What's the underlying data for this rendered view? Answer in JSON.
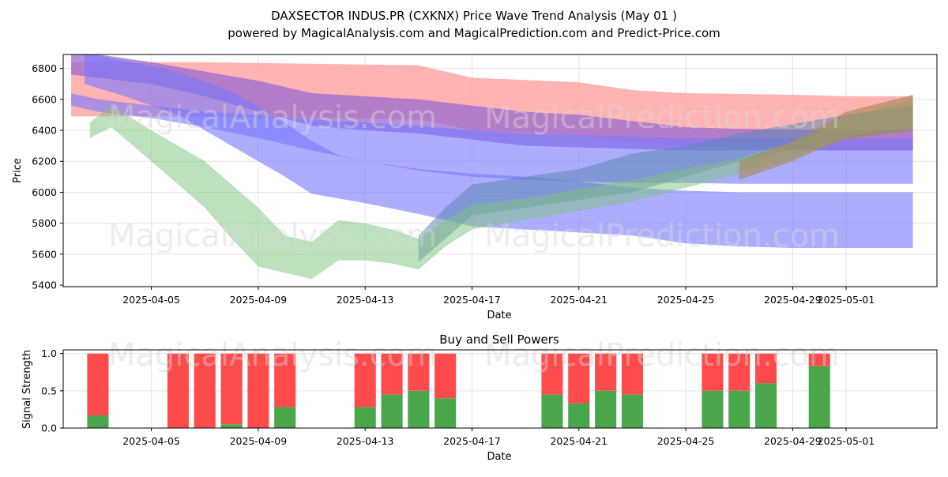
{
  "title_line1": "DAXSECTOR INDUS.PR (CXKNX) Price Wave Trend Analysis (May 01 )",
  "title_line2": "powered by MagicalAnalysis.com and MagicalPrediction.com and Predict-Price.com",
  "watermarks": [
    "MagicalAnalysis.com",
    "MagicalPrediction.com"
  ],
  "chart_data": [
    {
      "type": "area",
      "title": "DAXSECTOR INDUS.PR (CXKNX) Price Wave Trend Analysis (May 01 )",
      "xlabel": "Date",
      "ylabel": "Price",
      "x_tick_labels": [
        "2025-04-05",
        "2025-04-09",
        "2025-04-13",
        "2025-04-17",
        "2025-04-21",
        "2025-04-25",
        "2025-04-29",
        "2025-05-01"
      ],
      "x_tick_days": [
        3,
        7,
        11,
        15,
        19,
        23,
        27,
        29
      ],
      "xlim_days": [
        -0.3,
        32.4
      ],
      "x_day0": "2025-04-02",
      "y_ticks": [
        5400,
        5600,
        5800,
        6000,
        6200,
        6400,
        6600,
        6800
      ],
      "ylim": [
        5390,
        6890
      ],
      "grid": true,
      "bands": [
        {
          "name": "red-upper",
          "color": "#ff9999",
          "opacity": 0.75,
          "x": [
            0,
            5,
            9,
            13,
            15,
            19,
            21,
            23,
            27,
            29,
            31.5
          ],
          "upper": [
            6840,
            6840,
            6830,
            6820,
            6740,
            6710,
            6660,
            6640,
            6630,
            6620,
            6620
          ],
          "lower": [
            6490,
            6490,
            6480,
            6470,
            6400,
            6370,
            6320,
            6300,
            6290,
            6270,
            6270
          ]
        },
        {
          "name": "purple-upper",
          "color": "#9b6bd0",
          "opacity": 0.75,
          "x": [
            0,
            1,
            3,
            5,
            7,
            9,
            11,
            13,
            15,
            17,
            19,
            21,
            23,
            25,
            27,
            29,
            31.5
          ],
          "upper": [
            6900,
            6890,
            6840,
            6780,
            6720,
            6640,
            6620,
            6600,
            6560,
            6520,
            6500,
            6460,
            6420,
            6410,
            6405,
            6405,
            6405
          ],
          "lower": [
            6760,
            6740,
            6700,
            6620,
            6520,
            6430,
            6400,
            6380,
            6340,
            6300,
            6290,
            6280,
            6270,
            6270,
            6270,
            6270,
            6270
          ]
        },
        {
          "name": "blue-mid",
          "color": "#7777ff",
          "opacity": 0.6,
          "x": [
            0,
            1,
            3,
            5,
            7,
            9,
            11,
            13,
            15,
            17,
            19,
            21,
            23,
            25,
            27,
            29,
            31.5
          ],
          "upper": [
            6640,
            6600,
            6560,
            6520,
            6500,
            6470,
            6450,
            6430,
            6400,
            6380,
            6370,
            6360,
            6350,
            6350,
            6350,
            6350,
            6350
          ],
          "lower": [
            6560,
            6520,
            6480,
            6420,
            6350,
            6270,
            6200,
            6140,
            6100,
            6080,
            6070,
            6060,
            6060,
            6055,
            6055,
            6055,
            6055
          ]
        },
        {
          "name": "blue-lower",
          "color": "#7777ff",
          "opacity": 0.6,
          "x": [
            0.5,
            2,
            4,
            6,
            8,
            9,
            10,
            11,
            13,
            15,
            17,
            19,
            21,
            23,
            25,
            27,
            29,
            31.5
          ],
          "upper": [
            6900,
            6850,
            6780,
            6650,
            6450,
            6330,
            6240,
            6200,
            6150,
            6120,
            6100,
            6070,
            6030,
            6010,
            6000,
            6000,
            6000,
            6000
          ],
          "lower": [
            6700,
            6620,
            6500,
            6300,
            6100,
            5990,
            5960,
            5930,
            5860,
            5780,
            5760,
            5740,
            5720,
            5670,
            5650,
            5640,
            5640,
            5640
          ]
        },
        {
          "name": "blue-green-rise",
          "color": "#5f86b5",
          "opacity": 0.55,
          "x": [
            13,
            14,
            15,
            17,
            19,
            21,
            23,
            25,
            27,
            29,
            31.5
          ],
          "upper": [
            5720,
            5900,
            6050,
            6100,
            6150,
            6250,
            6300,
            6380,
            6440,
            6500,
            6560
          ],
          "lower": [
            5550,
            5700,
            5850,
            5900,
            5950,
            6000,
            6100,
            6200,
            6280,
            6350,
            6400
          ]
        },
        {
          "name": "green-wave",
          "color": "#7cc47c",
          "opacity": 0.5,
          "x": [
            0.7,
            1.5,
            3,
            5,
            6,
            7,
            8,
            9,
            10,
            11,
            12,
            13,
            14,
            15,
            17,
            19,
            21,
            23,
            25,
            27,
            29,
            31.5
          ],
          "upper": [
            6450,
            6560,
            6400,
            6200,
            6050,
            5900,
            5720,
            5680,
            5820,
            5800,
            5760,
            5700,
            5820,
            5920,
            5960,
            6020,
            6080,
            6150,
            6220,
            6320,
            6480,
            6600
          ],
          "lower": [
            6350,
            6420,
            6200,
            5900,
            5700,
            5520,
            5480,
            5440,
            5560,
            5560,
            5540,
            5500,
            5650,
            5760,
            5820,
            5880,
            5940,
            6030,
            6120,
            6220,
            6360,
            6420
          ]
        },
        {
          "name": "brown-end",
          "color": "#a88a5c",
          "opacity": 0.65,
          "x": [
            25,
            27,
            28,
            29,
            31.5
          ],
          "upper": [
            6200,
            6330,
            6420,
            6520,
            6630
          ],
          "lower": [
            6080,
            6200,
            6280,
            6340,
            6400
          ]
        }
      ]
    },
    {
      "type": "bar",
      "title": "Buy and Sell Powers",
      "xlabel": "Date",
      "ylabel": "Signal Strength",
      "x_tick_labels": [
        "2025-04-05",
        "2025-04-09",
        "2025-04-13",
        "2025-04-17",
        "2025-04-21",
        "2025-04-25",
        "2025-04-29",
        "2025-05-01"
      ],
      "y_ticks": [
        "0.0",
        "0.5",
        "1.0"
      ],
      "ylim": [
        0,
        1.05
      ],
      "total": 1.0,
      "days": [
        1,
        4,
        5,
        6,
        7,
        8,
        11,
        12,
        13,
        14,
        18,
        19,
        20,
        21,
        24,
        25,
        26,
        28
      ],
      "buy": [
        0.17,
        0.0,
        0.0,
        0.05,
        0.0,
        0.28,
        0.28,
        0.45,
        0.5,
        0.4,
        0.45,
        0.33,
        0.5,
        0.45,
        0.5,
        0.5,
        0.6,
        0.83
      ],
      "buy_color": "#4aa64a",
      "sell_color": "#ff4b4b"
    }
  ]
}
